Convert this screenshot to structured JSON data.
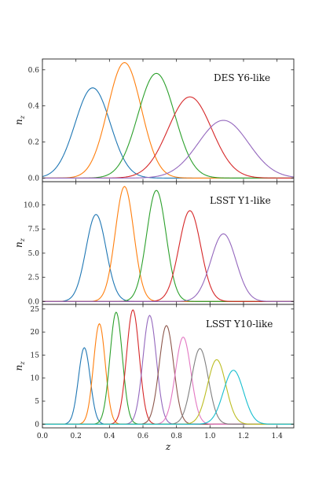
{
  "figure": {
    "xlabel": "z",
    "ylabel_main": "n",
    "ylabel_sub": "z"
  },
  "chart_data": [
    {
      "type": "line",
      "title": "DES Y6-like",
      "xlabel": "",
      "ylabel": "n_z",
      "xlim": [
        0.0,
        1.5
      ],
      "ylim": [
        -0.02,
        0.66
      ],
      "yticks": [
        0.0,
        0.2,
        0.4,
        0.6
      ],
      "ytick_labels": [
        "0.0",
        "0.2",
        "0.4",
        "0.6"
      ],
      "grid": false,
      "series": [
        {
          "color": "#1f77b4",
          "mean": 0.3,
          "sigma": 0.105,
          "peak": 0.5
        },
        {
          "color": "#ff7f0e",
          "mean": 0.49,
          "sigma": 0.1,
          "peak": 0.64
        },
        {
          "color": "#2ca02c",
          "mean": 0.68,
          "sigma": 0.11,
          "peak": 0.58
        },
        {
          "color": "#d62728",
          "mean": 0.88,
          "sigma": 0.13,
          "peak": 0.45
        },
        {
          "color": "#9467bd",
          "mean": 1.08,
          "sigma": 0.15,
          "peak": 0.32
        }
      ]
    },
    {
      "type": "line",
      "title": "LSST Y1-like",
      "xlabel": "",
      "ylabel": "n_z",
      "xlim": [
        0.0,
        1.5
      ],
      "ylim": [
        -0.3,
        12.4
      ],
      "yticks": [
        0.0,
        2.5,
        5.0,
        7.5,
        10.0
      ],
      "ytick_labels": [
        "0.0",
        "2.5",
        "5.0",
        "7.5",
        "10.0"
      ],
      "grid": false,
      "series": [
        {
          "color": "#1f77b4",
          "mean": 0.32,
          "sigma": 0.06,
          "peak": 9.0
        },
        {
          "color": "#ff7f0e",
          "mean": 0.49,
          "sigma": 0.055,
          "peak": 11.9
        },
        {
          "color": "#2ca02c",
          "mean": 0.68,
          "sigma": 0.058,
          "peak": 11.5
        },
        {
          "color": "#d62728",
          "mean": 0.88,
          "sigma": 0.065,
          "peak": 9.4
        },
        {
          "color": "#9467bd",
          "mean": 1.08,
          "sigma": 0.075,
          "peak": 7.0
        }
      ]
    },
    {
      "type": "line",
      "title": "LSST Y10-like",
      "xlabel": "z",
      "ylabel": "n_z",
      "xlim": [
        0.0,
        1.5
      ],
      "ylim": [
        -0.8,
        26.0
      ],
      "yticks": [
        0,
        5,
        10,
        15,
        20,
        25
      ],
      "ytick_labels": [
        "0",
        "5",
        "10",
        "15",
        "20",
        "25"
      ],
      "xticks": [
        0.0,
        0.2,
        0.4,
        0.6,
        0.8,
        1.0,
        1.2,
        1.4
      ],
      "xtick_labels": [
        "0.0",
        "0.2",
        "0.4",
        "0.6",
        "0.8",
        "1.0",
        "1.2",
        "1.4"
      ],
      "grid": false,
      "series": [
        {
          "color": "#1f77b4",
          "mean": 0.25,
          "sigma": 0.035,
          "peak": 16.6
        },
        {
          "color": "#ff7f0e",
          "mean": 0.34,
          "sigma": 0.035,
          "peak": 21.8
        },
        {
          "color": "#2ca02c",
          "mean": 0.44,
          "sigma": 0.037,
          "peak": 24.3
        },
        {
          "color": "#d62728",
          "mean": 0.54,
          "sigma": 0.038,
          "peak": 24.8
        },
        {
          "color": "#9467bd",
          "mean": 0.64,
          "sigma": 0.04,
          "peak": 23.6
        },
        {
          "color": "#8c564b",
          "mean": 0.74,
          "sigma": 0.043,
          "peak": 21.4
        },
        {
          "color": "#e377c2",
          "mean": 0.84,
          "sigma": 0.046,
          "peak": 18.9
        },
        {
          "color": "#7f7f7f",
          "mean": 0.94,
          "sigma": 0.05,
          "peak": 16.4
        },
        {
          "color": "#bcbd22",
          "mean": 1.04,
          "sigma": 0.055,
          "peak": 14.0
        },
        {
          "color": "#17becf",
          "mean": 1.14,
          "sigma": 0.06,
          "peak": 11.7
        }
      ]
    }
  ]
}
